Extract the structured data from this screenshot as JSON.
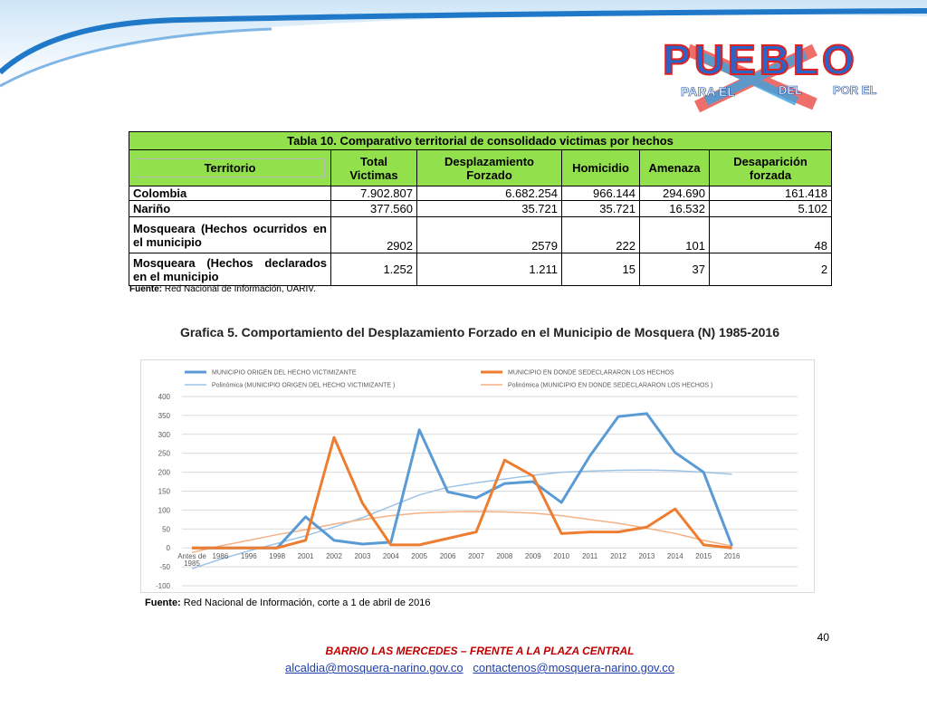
{
  "logo": {
    "word": "PUEBLO",
    "left": "PARA EL",
    "middle": "DEL",
    "right": "POR EL"
  },
  "table": {
    "title": "Tabla 10.  Comparativo territorial de consolidado victimas por hechos",
    "headers": [
      "Territorio",
      "Total Victimas",
      "Desplazamiento Forzado",
      "Homicidio",
      "Amenaza",
      "Desaparición forzada"
    ],
    "rows": [
      [
        "Colombia",
        "7.902.807",
        "6.682.254",
        "966.144",
        "294.690",
        "161.418"
      ],
      [
        "Nariño",
        "377.560",
        "35.721",
        "35.721",
        "16.532",
        "5.102"
      ],
      [
        "Mosqueara (Hechos ocurridos en el municipio",
        "2902",
        "2579",
        "222",
        "101",
        "48"
      ],
      [
        "Mosqueara (Hechos declarados en el municipio",
        "1.252",
        "1.211",
        "15",
        "37",
        "2"
      ]
    ],
    "note": {
      "label": "Fuente:",
      "text": "Red Nacional de Información, UARIV."
    }
  },
  "chart_data": {
    "type": "line",
    "title": "Grafica 5. Comportamiento del Desplazamiento Forzado en el Municipio de Mosquera (N) 1985-2016",
    "categories": [
      "Antes de 1985",
      "1986",
      "1996",
      "1998",
      "2001",
      "2002",
      "2003",
      "2004",
      "2005",
      "2006",
      "2007",
      "2008",
      "2009",
      "2010",
      "2011",
      "2012",
      "2013",
      "2014",
      "2015",
      "2016"
    ],
    "series": [
      {
        "name": "MUNICIPIO ORIGEN DEL HECHO VICTIMIZANTE",
        "color": "#5b9bd5",
        "line_width": 3,
        "values": [
          0,
          0,
          0,
          0,
          82,
          20,
          10,
          15,
          312,
          148,
          132,
          170,
          175,
          120,
          243,
          347,
          355,
          252,
          200,
          5
        ]
      },
      {
        "name": "MUNICIPIO EN DONDE SEDECLARARON LOS HECHOS",
        "color": "#ed7d31",
        "line_width": 3,
        "values": [
          0,
          0,
          0,
          0,
          20,
          292,
          118,
          8,
          8,
          25,
          42,
          232,
          190,
          38,
          42,
          42,
          55,
          103,
          8,
          0
        ]
      },
      {
        "name": "Polinómica (MUNICIPIO ORIGEN DEL HECHO VICTIMIZANTE )",
        "color": "#9dc3e6",
        "line_width": 1.5,
        "values": [
          -55,
          -30,
          -8,
          12,
          32,
          55,
          80,
          110,
          140,
          160,
          172,
          182,
          192,
          200,
          203,
          205,
          206,
          204,
          200,
          195
        ]
      },
      {
        "name": "Polinómica (MUNICIPIO EN DONDE SEDECLARARON LOS HECHOS )",
        "color": "#f4b183",
        "line_width": 1.5,
        "values": [
          -12,
          5,
          20,
          35,
          48,
          63,
          75,
          85,
          92,
          95,
          96,
          95,
          92,
          85,
          75,
          65,
          52,
          38,
          20,
          5
        ]
      }
    ],
    "ylim": [
      -100,
      400
    ],
    "yticks": [
      -100,
      -50,
      0,
      50,
      100,
      150,
      200,
      250,
      300,
      350,
      400
    ],
    "grid": true
  },
  "chart_note": {
    "label": "Fuente:",
    "text": "Red Nacional de Información, corte a 1 de abril de 2016"
  },
  "footer": {
    "page": "40",
    "address": "BARRIO LAS MERCEDES – FRENTE A LA PLAZA CENTRAL",
    "email1": "alcaldia@mosquera-narino.gov.co",
    "email2": "contactenos@mosquera-narino.gov.co"
  }
}
